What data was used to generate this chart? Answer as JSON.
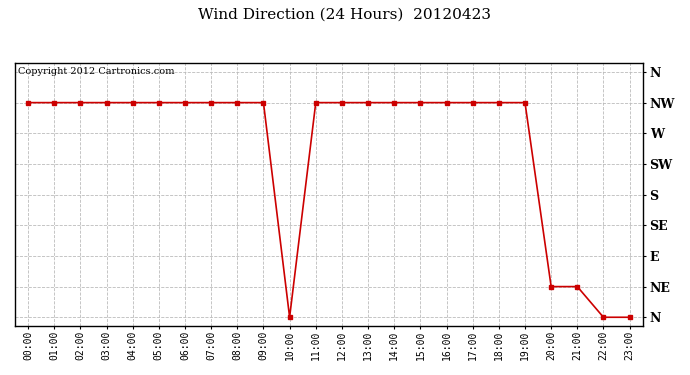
{
  "title": "Wind Direction (24 Hours)  20120423",
  "copyright_text": "Copyright 2012 Cartronics.com",
  "background_color": "#ffffff",
  "plot_bg_color": "#ffffff",
  "line_color": "#cc0000",
  "grid_color": "#bbbbbb",
  "hours": [
    0,
    1,
    2,
    3,
    4,
    5,
    6,
    7,
    8,
    9,
    10,
    11,
    12,
    13,
    14,
    15,
    16,
    17,
    18,
    19,
    20,
    21,
    22,
    23
  ],
  "values": [
    7,
    7,
    7,
    7,
    7,
    7,
    7,
    7,
    7,
    7,
    0,
    7,
    7,
    7,
    7,
    7,
    7,
    7,
    7,
    7,
    1,
    1,
    0,
    0
  ],
  "ytick_labels": [
    "N",
    "NE",
    "E",
    "SE",
    "S",
    "SW",
    "W",
    "NW",
    "N"
  ],
  "ytick_values": [
    0,
    1,
    2,
    3,
    4,
    5,
    6,
    7,
    8
  ],
  "xtick_labels": [
    "00:00",
    "01:00",
    "02:00",
    "03:00",
    "04:00",
    "05:00",
    "06:00",
    "07:00",
    "08:00",
    "09:00",
    "10:00",
    "11:00",
    "12:00",
    "13:00",
    "14:00",
    "15:00",
    "16:00",
    "17:00",
    "18:00",
    "19:00",
    "20:00",
    "21:00",
    "22:00",
    "23:00"
  ],
  "title_fontsize": 11,
  "tick_fontsize": 7,
  "copyright_fontsize": 7,
  "ylim": [
    -0.3,
    8.3
  ]
}
